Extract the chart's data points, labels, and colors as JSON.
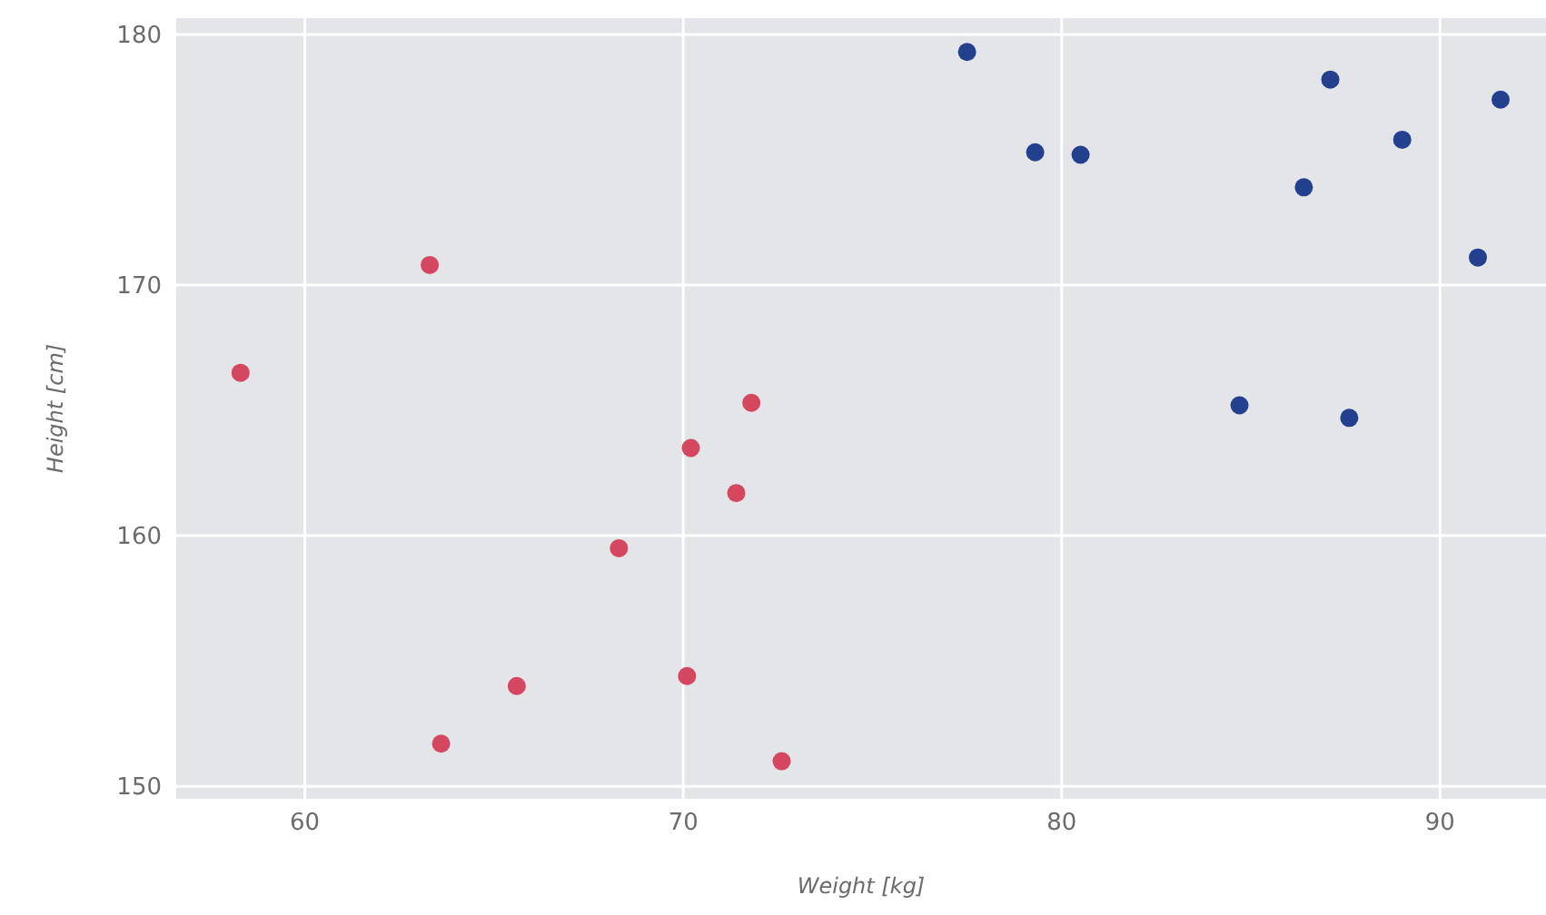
{
  "chart_data": {
    "type": "scatter",
    "xlabel": "Weight [kg]",
    "ylabel": "Height [cm]",
    "xlim": [
      56.6,
      92.8
    ],
    "ylim": [
      149.5,
      180.65
    ],
    "xticks": [
      60,
      70,
      80,
      90
    ],
    "yticks": [
      150,
      160,
      170,
      180
    ],
    "grid": true,
    "marker": "circle",
    "series": [
      {
        "color": "#d5475f",
        "x": [
          63.3,
          58.3,
          71.8,
          70.2,
          71.4,
          68.3,
          65.6,
          70.1,
          63.6,
          72.6
        ],
        "values": [
          170.8,
          166.5,
          165.3,
          163.5,
          161.7,
          159.5,
          154.0,
          154.4,
          151.7,
          151.0
        ]
      },
      {
        "color": "#23408e",
        "x": [
          77.5,
          79.3,
          80.5,
          87.1,
          89.0,
          86.4,
          91.6,
          91.0,
          84.7,
          87.6
        ],
        "values": [
          179.3,
          175.3,
          175.2,
          178.2,
          175.8,
          173.9,
          177.4,
          171.1,
          165.2,
          164.7
        ]
      }
    ]
  }
}
